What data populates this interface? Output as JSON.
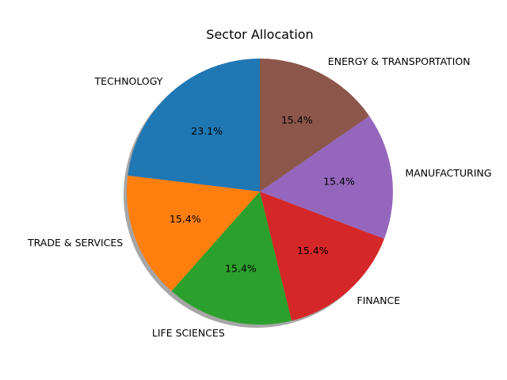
{
  "chart_data": {
    "type": "pie",
    "title": "Sector Allocation",
    "start_angle_deg": 90,
    "direction": "counterclockwise",
    "shadow": true,
    "slices": [
      {
        "label": "TECHNOLOGY",
        "value": 23.1,
        "pct_label": "23.1%",
        "color": "#1f77b4"
      },
      {
        "label": "TRADE & SERVICES",
        "value": 15.4,
        "pct_label": "15.4%",
        "color": "#ff7f0e"
      },
      {
        "label": "LIFE SCIENCES",
        "value": 15.4,
        "pct_label": "15.4%",
        "color": "#2ca02c"
      },
      {
        "label": "FINANCE",
        "value": 15.4,
        "pct_label": "15.4%",
        "color": "#d62728"
      },
      {
        "label": "MANUFACTURING",
        "value": 15.4,
        "pct_label": "15.4%",
        "color": "#9467bd"
      },
      {
        "label": "ENERGY & TRANSPORTATION",
        "value": 15.4,
        "pct_label": "15.4%",
        "color": "#8c564b"
      }
    ]
  }
}
